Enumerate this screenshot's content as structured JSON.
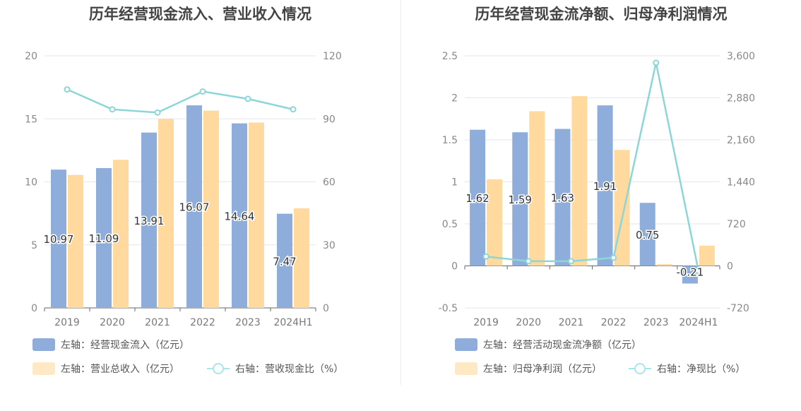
{
  "chart_data": [
    {
      "type": "bar",
      "title": "历年经营现金流入、营业收入情况",
      "categories": [
        "2019",
        "2020",
        "2021",
        "2022",
        "2023",
        "2024H1"
      ],
      "y_left": {
        "range": [
          0,
          20
        ],
        "ticks": [
          "0",
          "5",
          "10",
          "15",
          "20"
        ]
      },
      "y_right": {
        "range": [
          0,
          120
        ],
        "ticks": [
          "0",
          "30",
          "60",
          "90",
          "120"
        ]
      },
      "series": [
        {
          "name": "左轴：经营现金流入（亿元）",
          "type": "bar",
          "axis": "left",
          "color": "#8eaddb",
          "values": [
            10.97,
            11.09,
            13.91,
            16.07,
            14.64,
            7.47
          ],
          "labels": [
            "10.97",
            "11.09",
            "13.91",
            "16.07",
            "14.64",
            "7.47"
          ]
        },
        {
          "name": "左轴：营业总收入（亿元）",
          "type": "bar",
          "axis": "left",
          "color": "#ffd99e",
          "values": [
            10.55,
            11.75,
            15.0,
            15.65,
            14.7,
            7.9
          ]
        },
        {
          "name": "右轴：营收现金比（%）",
          "type": "line",
          "axis": "right",
          "color": "#8dd6d8",
          "values": [
            104,
            94.5,
            93,
            103,
            99.5,
            94.5
          ]
        }
      ],
      "grid": true
    },
    {
      "type": "bar",
      "title": "历年经营现金流净额、归母净利润情况",
      "categories": [
        "2019",
        "2020",
        "2021",
        "2022",
        "2023",
        "2024H1"
      ],
      "y_left": {
        "range": [
          -0.5,
          2.5
        ],
        "ticks": [
          "-0.5",
          "0",
          "0.5",
          "1",
          "1.5",
          "2",
          "2.5"
        ]
      },
      "y_right": {
        "range": [
          -720,
          3600
        ],
        "ticks": [
          "-720",
          "0",
          "720",
          "1,440",
          "2,160",
          "2,880",
          "3,600"
        ]
      },
      "series": [
        {
          "name": "左轴：经营活动现金流净额（亿元）",
          "type": "bar",
          "axis": "left",
          "color": "#8eaddb",
          "values": [
            1.62,
            1.59,
            1.63,
            1.91,
            0.75,
            -0.21
          ],
          "labels": [
            "1.62",
            "1.59",
            "1.63",
            "1.91",
            "0.75",
            "-0.21"
          ]
        },
        {
          "name": "左轴：归母净利润（亿元）",
          "type": "bar",
          "axis": "left",
          "color": "#ffd99e",
          "values": [
            1.03,
            1.84,
            2.02,
            1.38,
            0.02,
            0.24
          ]
        },
        {
          "name": "右轴：净现比（%）",
          "type": "line",
          "axis": "right",
          "color": "#8dd6d8",
          "values": [
            160,
            80,
            80,
            140,
            3480,
            -90
          ]
        }
      ],
      "grid": true
    }
  ]
}
